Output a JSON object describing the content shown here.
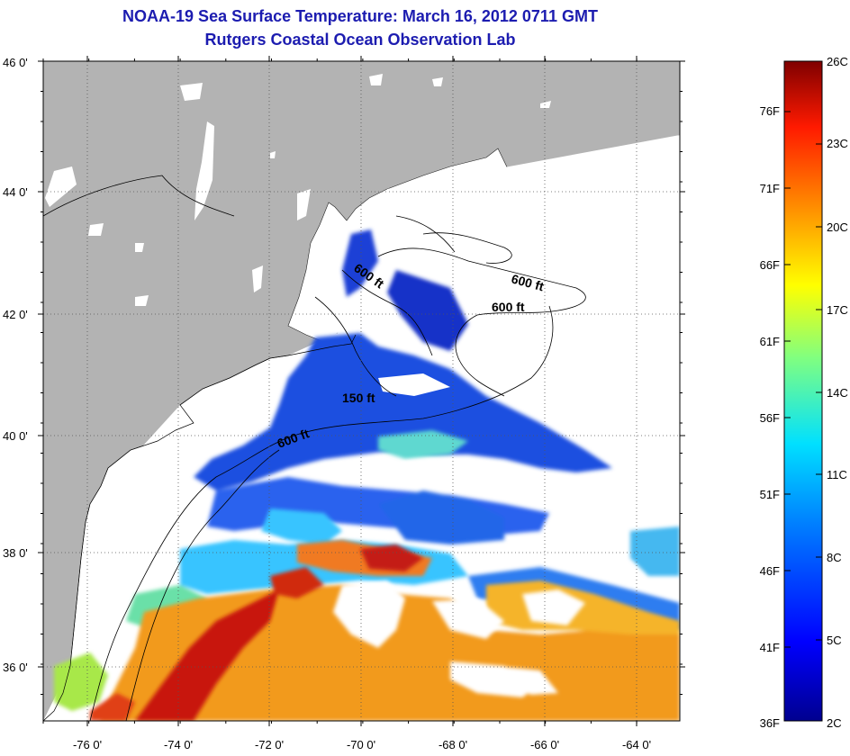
{
  "header": {
    "title": "NOAA-19 Sea Surface Temperature:  March 16, 2012 0711 GMT",
    "subtitle": "Rutgers Coastal Ocean Observation Lab"
  },
  "map": {
    "lat_labels": [
      "46 0'",
      "44 0'",
      "42 0'",
      "40 0'",
      "38 0'",
      "36 0'"
    ],
    "lon_labels": [
      "-76 0'",
      "-74 0'",
      "-72 0'",
      "-70 0'",
      "-68 0'",
      "-66 0'",
      "-64 0'"
    ],
    "contour_labels": [
      "600 ft",
      "600 ft",
      "600 ft",
      "150 ft",
      "600 ft"
    ],
    "colors": {
      "land": "#b3b3b3",
      "cloud": "#ffffff",
      "cold": "#1a3fd6",
      "mid": "#39c4ff",
      "warm": "#f29a1a",
      "hot": "#c8140f"
    }
  },
  "colorbar": {
    "celsius_labels": [
      "26C",
      "23C",
      "20C",
      "17C",
      "14C",
      "11C",
      "8C",
      "5C",
      "2C"
    ],
    "fahrenheit_labels": [
      "76F",
      "71F",
      "66F",
      "61F",
      "56F",
      "51F",
      "46F",
      "41F",
      "36F"
    ]
  }
}
